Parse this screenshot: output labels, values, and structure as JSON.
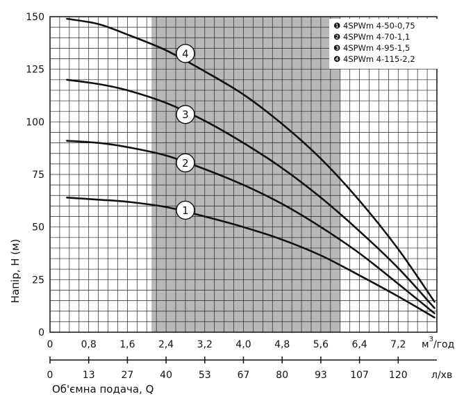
{
  "chart_data": {
    "type": "line",
    "ylabel": "Напір, H (м)",
    "xlabel": "Об'ємна подача, Q",
    "x_unit": "м³/год",
    "x_unit_base": "м",
    "x_unit_sup": "3",
    "x_unit_tail": "/год",
    "x2_unit": "л/хв",
    "xlim": [
      0,
      8.0
    ],
    "ylim": [
      0,
      150
    ],
    "x_ticks": [
      "0",
      "0,8",
      "1,6",
      "2,4",
      "3,2",
      "4,0",
      "4,8",
      "5,6",
      "6,4",
      "7,2"
    ],
    "x_tick_values": [
      0,
      0.8,
      1.6,
      2.4,
      3.2,
      4.0,
      4.8,
      5.6,
      6.4,
      7.2
    ],
    "x2_ticks": [
      "0",
      "13",
      "27",
      "40",
      "53",
      "67",
      "80",
      "93",
      "107",
      "120"
    ],
    "y_ticks": [
      "0",
      "25",
      "50",
      "75",
      "100",
      "125",
      "150"
    ],
    "y_tick_values": [
      0,
      25,
      50,
      75,
      100,
      125,
      150
    ],
    "grid": true,
    "recommended_range": [
      2.1,
      6.0
    ],
    "legend_position": "top-right",
    "series": [
      {
        "name": "4SPWm 4-50-0,75",
        "marker": "1",
        "legend_marker": "❶",
        "label_at": [
          2.8,
          58
        ],
        "x": [
          0.35,
          1.0,
          1.6,
          2.4,
          3.2,
          4.0,
          4.8,
          5.6,
          6.4,
          7.2,
          7.95
        ],
        "y": [
          64,
          63,
          62,
          59.5,
          55,
          50,
          44,
          36.5,
          27,
          17,
          7
        ]
      },
      {
        "name": "4SPWm 4-70-1,1",
        "marker": "2",
        "legend_marker": "❷",
        "label_at": [
          2.8,
          80.5
        ],
        "x": [
          0.35,
          1.0,
          1.6,
          2.4,
          3.2,
          4.0,
          4.8,
          5.6,
          6.4,
          7.2,
          7.95
        ],
        "y": [
          91,
          90,
          88,
          84,
          77.5,
          70,
          61,
          50,
          37.5,
          23,
          9
        ]
      },
      {
        "name": "4SPWm 4-95-1,5",
        "marker": "3",
        "legend_marker": "❸",
        "label_at": [
          2.8,
          103.5
        ],
        "x": [
          0.35,
          1.0,
          1.6,
          2.4,
          3.2,
          4.0,
          4.8,
          5.6,
          6.4,
          7.2,
          7.95
        ],
        "y": [
          120,
          118,
          115,
          109,
          100.5,
          90,
          78,
          64,
          48,
          30.5,
          11.5
        ]
      },
      {
        "name": "4SPWm 4-115-2,2",
        "marker": "4",
        "legend_marker": "❹",
        "label_at": [
          2.8,
          132.5
        ],
        "x": [
          0.35,
          1.0,
          1.6,
          2.4,
          3.2,
          4.0,
          4.8,
          5.6,
          6.4,
          7.2,
          7.95
        ],
        "y": [
          149,
          146.5,
          141.5,
          134,
          124,
          113,
          99,
          82.5,
          62.5,
          39.5,
          14.5
        ]
      }
    ]
  }
}
